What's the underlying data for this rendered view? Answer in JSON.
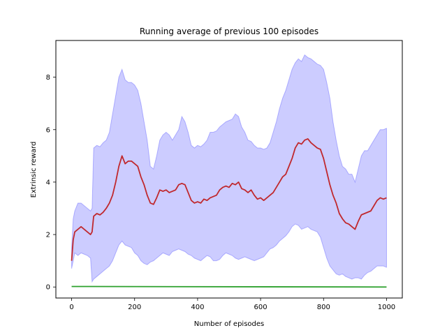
{
  "chart_data": {
    "type": "line",
    "title": "Running average of previous 100 episodes",
    "xlabel": "Number of episodes",
    "ylabel": "Extrinsic reward",
    "xlim": [
      -50,
      1050
    ],
    "ylim": [
      -0.42,
      9.4
    ],
    "xticks": [
      0,
      200,
      400,
      600,
      800,
      1000
    ],
    "yticks": [
      0,
      2,
      4,
      6,
      8
    ],
    "grid": false,
    "legend": "none",
    "colors": {
      "mean": "#c0282d",
      "band_fill": "#0000ff",
      "band_fill_opacity": 0.2,
      "baseline": "#2ca02c",
      "baseline_secondary": "#ff7f0e"
    },
    "series": [
      {
        "role": "mean",
        "x": [
          0,
          5,
          10,
          20,
          30,
          40,
          50,
          60,
          65,
          70,
          80,
          90,
          100,
          110,
          120,
          130,
          140,
          150,
          160,
          170,
          180,
          190,
          200,
          210,
          220,
          230,
          240,
          250,
          260,
          270,
          280,
          290,
          300,
          310,
          320,
          330,
          340,
          350,
          360,
          370,
          380,
          390,
          400,
          410,
          420,
          430,
          440,
          450,
          460,
          470,
          480,
          490,
          500,
          510,
          520,
          530,
          540,
          550,
          560,
          570,
          580,
          590,
          600,
          610,
          620,
          630,
          640,
          650,
          660,
          670,
          680,
          690,
          700,
          710,
          720,
          730,
          740,
          750,
          760,
          770,
          780,
          790,
          800,
          810,
          820,
          830,
          840,
          850,
          860,
          870,
          880,
          890,
          900,
          910,
          920,
          930,
          940,
          950,
          960,
          970,
          980,
          990,
          1000
        ],
        "y": [
          1.0,
          1.8,
          2.1,
          2.2,
          2.3,
          2.2,
          2.1,
          2.0,
          2.1,
          2.7,
          2.8,
          2.75,
          2.85,
          3.0,
          3.2,
          3.5,
          4.0,
          4.6,
          5.0,
          4.7,
          4.8,
          4.8,
          4.7,
          4.6,
          4.2,
          3.9,
          3.5,
          3.2,
          3.15,
          3.4,
          3.7,
          3.65,
          3.7,
          3.6,
          3.65,
          3.7,
          3.9,
          3.95,
          3.9,
          3.6,
          3.3,
          3.2,
          3.25,
          3.2,
          3.35,
          3.3,
          3.4,
          3.45,
          3.5,
          3.7,
          3.8,
          3.85,
          3.8,
          3.95,
          3.9,
          4.0,
          3.75,
          3.7,
          3.6,
          3.7,
          3.5,
          3.35,
          3.4,
          3.3,
          3.4,
          3.5,
          3.6,
          3.8,
          4.0,
          4.2,
          4.3,
          4.6,
          4.9,
          5.3,
          5.5,
          5.45,
          5.6,
          5.65,
          5.5,
          5.4,
          5.3,
          5.25,
          4.9,
          4.4,
          3.9,
          3.5,
          3.2,
          2.8,
          2.6,
          2.45,
          2.4,
          2.3,
          2.2,
          2.5,
          2.75,
          2.8,
          2.85,
          2.9,
          3.1,
          3.3,
          3.4,
          3.35,
          3.4
        ]
      },
      {
        "role": "band_upper",
        "x": [
          0,
          5,
          10,
          20,
          30,
          40,
          50,
          60,
          65,
          70,
          80,
          90,
          100,
          110,
          120,
          130,
          140,
          150,
          160,
          170,
          180,
          190,
          200,
          210,
          220,
          230,
          240,
          250,
          260,
          270,
          280,
          290,
          300,
          310,
          320,
          330,
          340,
          350,
          360,
          370,
          380,
          390,
          400,
          410,
          420,
          430,
          440,
          450,
          460,
          470,
          480,
          490,
          500,
          510,
          520,
          530,
          540,
          550,
          560,
          570,
          580,
          590,
          600,
          610,
          620,
          630,
          640,
          650,
          660,
          670,
          680,
          690,
          700,
          710,
          720,
          730,
          740,
          750,
          760,
          770,
          780,
          790,
          800,
          810,
          820,
          830,
          840,
          850,
          860,
          870,
          880,
          890,
          900,
          910,
          920,
          930,
          940,
          950,
          960,
          970,
          980,
          990,
          1000
        ],
        "y": [
          1.5,
          2.6,
          2.9,
          3.2,
          3.2,
          3.1,
          3.0,
          2.9,
          3.0,
          5.3,
          5.4,
          5.35,
          5.5,
          5.6,
          5.9,
          6.6,
          7.3,
          8.0,
          8.3,
          7.9,
          7.8,
          7.8,
          7.7,
          7.5,
          7.0,
          6.3,
          5.6,
          4.6,
          4.5,
          5.0,
          5.6,
          5.8,
          5.9,
          5.8,
          5.6,
          5.8,
          6.0,
          6.5,
          6.3,
          5.9,
          5.4,
          5.3,
          5.4,
          5.35,
          5.45,
          5.6,
          5.9,
          5.9,
          5.95,
          6.1,
          6.2,
          6.3,
          6.35,
          6.4,
          6.6,
          6.5,
          6.1,
          5.9,
          5.6,
          5.55,
          5.4,
          5.3,
          5.3,
          5.25,
          5.3,
          5.5,
          5.9,
          6.3,
          6.8,
          7.2,
          7.5,
          7.9,
          8.3,
          8.55,
          8.7,
          8.6,
          8.85,
          8.75,
          8.7,
          8.6,
          8.5,
          8.45,
          8.3,
          7.8,
          7.2,
          6.3,
          5.6,
          5.0,
          4.6,
          4.5,
          4.3,
          4.3,
          4.0,
          4.5,
          5.0,
          5.2,
          5.2,
          5.4,
          5.6,
          5.8,
          6.0,
          6.0,
          6.05
        ]
      },
      {
        "role": "band_lower",
        "x": [
          0,
          5,
          10,
          20,
          30,
          40,
          50,
          60,
          65,
          70,
          80,
          90,
          100,
          110,
          120,
          130,
          140,
          150,
          160,
          170,
          180,
          190,
          200,
          210,
          220,
          230,
          240,
          250,
          260,
          270,
          280,
          290,
          300,
          310,
          320,
          330,
          340,
          350,
          360,
          370,
          380,
          390,
          400,
          410,
          420,
          430,
          440,
          450,
          460,
          470,
          480,
          490,
          500,
          510,
          520,
          530,
          540,
          550,
          560,
          570,
          580,
          590,
          600,
          610,
          620,
          630,
          640,
          650,
          660,
          670,
          680,
          690,
          700,
          710,
          720,
          730,
          740,
          750,
          760,
          770,
          780,
          790,
          800,
          810,
          820,
          830,
          840,
          850,
          860,
          870,
          880,
          890,
          900,
          910,
          920,
          930,
          940,
          950,
          960,
          970,
          980,
          990,
          1000
        ],
        "y": [
          0.7,
          1.0,
          1.3,
          1.2,
          1.3,
          1.25,
          1.2,
          1.1,
          0.2,
          0.3,
          0.4,
          0.5,
          0.6,
          0.7,
          0.8,
          1.0,
          1.3,
          1.6,
          1.75,
          1.6,
          1.55,
          1.5,
          1.3,
          1.2,
          1.0,
          0.9,
          0.85,
          0.95,
          1.0,
          1.1,
          1.2,
          1.3,
          1.25,
          1.2,
          1.35,
          1.4,
          1.45,
          1.4,
          1.35,
          1.25,
          1.2,
          1.1,
          1.05,
          1.0,
          1.1,
          1.2,
          1.15,
          1.0,
          1.0,
          1.05,
          1.2,
          1.3,
          1.25,
          1.2,
          1.1,
          1.05,
          1.1,
          1.15,
          1.1,
          1.05,
          1.0,
          1.05,
          1.1,
          1.15,
          1.3,
          1.45,
          1.5,
          1.6,
          1.75,
          1.85,
          1.95,
          2.1,
          2.3,
          2.4,
          2.35,
          2.2,
          2.25,
          2.3,
          2.2,
          2.15,
          2.1,
          1.9,
          1.5,
          1.1,
          0.8,
          0.65,
          0.5,
          0.45,
          0.5,
          0.4,
          0.35,
          0.3,
          0.35,
          0.35,
          0.3,
          0.45,
          0.55,
          0.6,
          0.7,
          0.8,
          0.8,
          0.8,
          0.75
        ]
      },
      {
        "role": "baseline",
        "x": [
          0,
          1000
        ],
        "y": [
          0.02,
          0.0
        ]
      }
    ]
  }
}
